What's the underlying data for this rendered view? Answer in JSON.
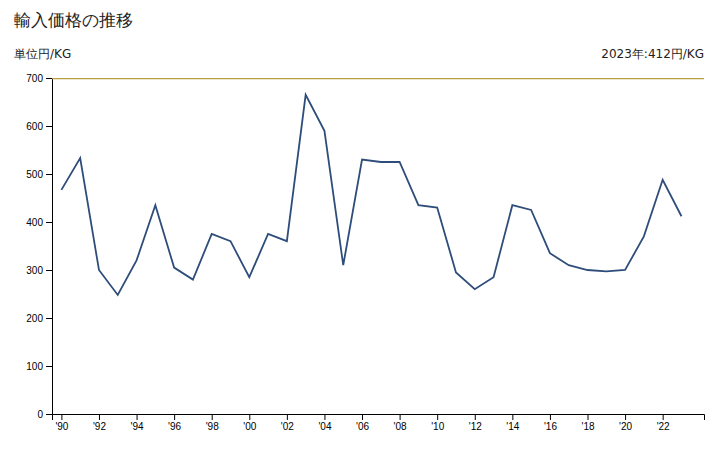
{
  "chart_data": {
    "type": "line",
    "title": "輸入価格の推移",
    "y_label": "単位円/KG",
    "annotation": "2023年:412円/KG",
    "x": [
      1990,
      1991,
      1992,
      1993,
      1994,
      1995,
      1996,
      1997,
      1998,
      1999,
      2000,
      2001,
      2002,
      2003,
      2004,
      2005,
      2006,
      2007,
      2008,
      2009,
      2010,
      2011,
      2012,
      2013,
      2014,
      2015,
      2016,
      2017,
      2018,
      2019,
      2020,
      2021,
      2022,
      2023
    ],
    "values": [
      467,
      533,
      300,
      248,
      320,
      435,
      305,
      280,
      375,
      360,
      285,
      375,
      360,
      665,
      590,
      310,
      530,
      525,
      525,
      435,
      430,
      295,
      260,
      285,
      435,
      425,
      335,
      310,
      300,
      297,
      300,
      370,
      488,
      412
    ],
    "color": "#2e4d7b",
    "hlines": [
      {
        "value": 700,
        "color": "#b8a040"
      }
    ],
    "xlim": [
      1989.5,
      2024.2
    ],
    "xticks": [
      {
        "value": 1990,
        "label": "'90"
      },
      {
        "value": 1992,
        "label": "'92"
      },
      {
        "value": 1994,
        "label": "'94"
      },
      {
        "value": 1996,
        "label": "'96"
      },
      {
        "value": 1998,
        "label": "'98"
      },
      {
        "value": 2000,
        "label": "'00"
      },
      {
        "value": 2002,
        "label": "'02"
      },
      {
        "value": 2004,
        "label": "'04"
      },
      {
        "value": 2006,
        "label": "'06"
      },
      {
        "value": 2008,
        "label": "'08"
      },
      {
        "value": 2010,
        "label": "'10"
      },
      {
        "value": 2012,
        "label": "'12"
      },
      {
        "value": 2014,
        "label": "'14"
      },
      {
        "value": 2016,
        "label": "'16"
      },
      {
        "value": 2018,
        "label": "'18"
      },
      {
        "value": 2020,
        "label": "'20"
      },
      {
        "value": 2022,
        "label": "'22"
      }
    ],
    "ylim": [
      0,
      700
    ],
    "yticks": [
      0,
      100,
      200,
      300,
      400,
      500,
      600,
      700
    ],
    "grid": false
  }
}
